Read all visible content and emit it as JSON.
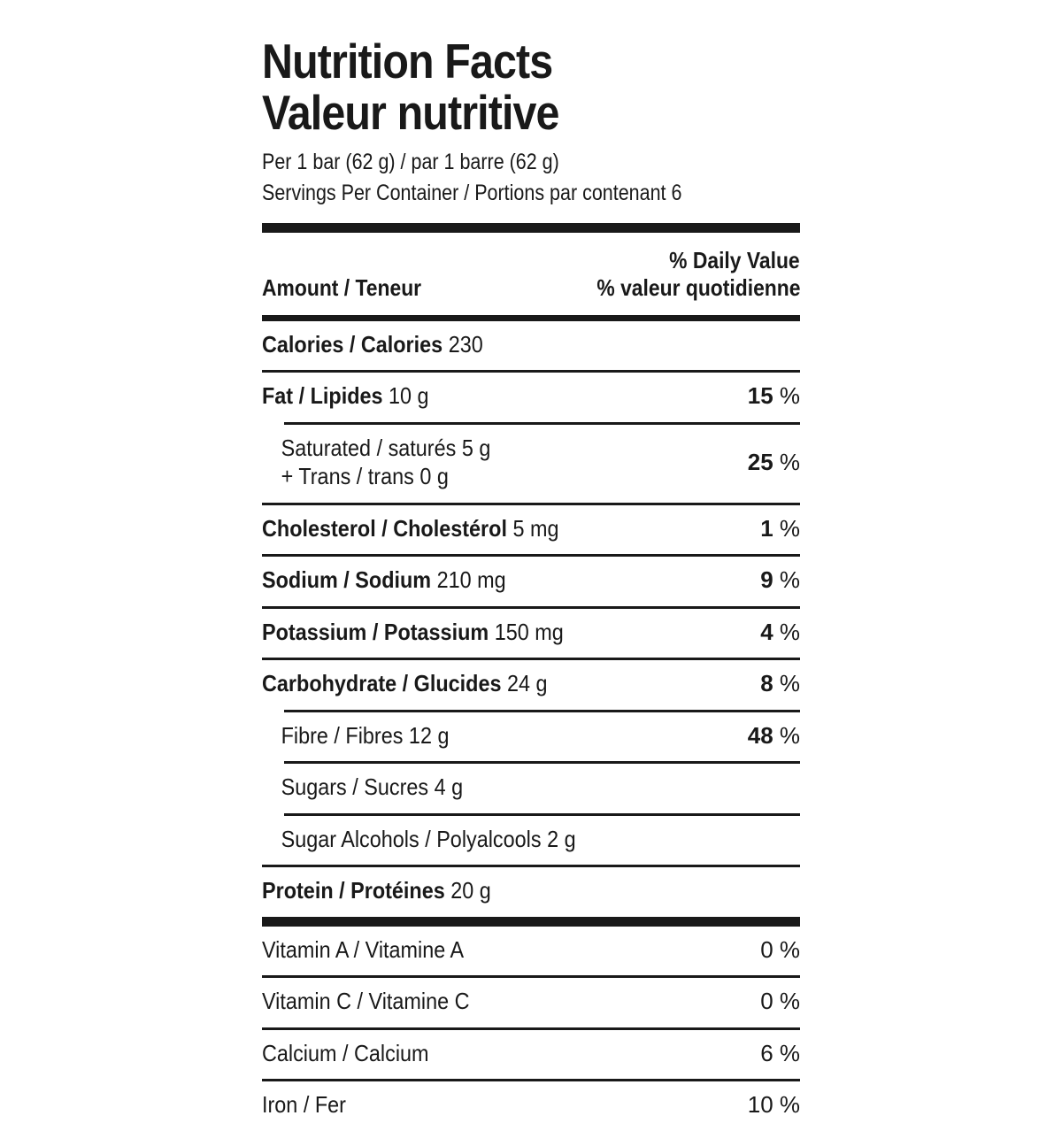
{
  "label": {
    "title_en": "Nutrition Facts",
    "title_fr": "Valeur nutritive",
    "serving_size_line": "Per 1 bar (62 g) / par 1 barre (62 g)",
    "servings_per_container_line": "Servings Per Container / Portions par contenant 6",
    "column_header_left": "Amount / Teneur",
    "column_header_right_en": "% Daily Value",
    "column_header_right_fr": "% valeur quotidienne",
    "percent_sign": "%",
    "colors": {
      "text": "#191919",
      "background": "#ffffff"
    },
    "rows": [
      {
        "bold": "Calories / Calories",
        "rest": "230",
        "dv": "",
        "indent": false,
        "sep": "none"
      },
      {
        "bold": "Fat / Lipides",
        "rest": "10 g",
        "dv": "15",
        "indent": false,
        "sep": "full"
      },
      {
        "lines": [
          "Saturated / saturés 5 g",
          "+ Trans / trans 0 g"
        ],
        "dv": "25",
        "indent": true,
        "sep": "indent"
      },
      {
        "bold": "Cholesterol / Cholestérol",
        "rest": "5 mg",
        "dv": "1",
        "indent": false,
        "sep": "full"
      },
      {
        "bold": "Sodium / Sodium",
        "rest": "210 mg",
        "dv": "9",
        "indent": false,
        "sep": "full"
      },
      {
        "bold": "Potassium / Potassium",
        "rest": "150 mg",
        "dv": "4",
        "indent": false,
        "sep": "full"
      },
      {
        "bold": "Carbohydrate / Glucides",
        "rest": "24 g",
        "dv": "8",
        "indent": false,
        "sep": "full"
      },
      {
        "plain": "Fibre / Fibres 12 g",
        "dv": "48",
        "indent": true,
        "sep": "indent"
      },
      {
        "plain": "Sugars / Sucres 4 g",
        "dv": "",
        "indent": true,
        "sep": "indent"
      },
      {
        "plain": "Sugar Alcohols / Polyalcools 2 g",
        "dv": "",
        "indent": true,
        "sep": "indent"
      },
      {
        "bold": "Protein / Protéines",
        "rest": "20 g",
        "dv": "",
        "indent": false,
        "sep": "full"
      }
    ],
    "micronutrients": [
      {
        "plain": "Vitamin A / Vitamine A",
        "dv": "0",
        "indent": false,
        "sep": "none"
      },
      {
        "plain": "Vitamin C / Vitamine C",
        "dv": "0",
        "indent": false,
        "sep": "full"
      },
      {
        "plain": "Calcium / Calcium",
        "dv": "6",
        "indent": false,
        "sep": "full"
      },
      {
        "plain": "Iron / Fer",
        "dv": "10",
        "indent": false,
        "sep": "full"
      }
    ]
  }
}
